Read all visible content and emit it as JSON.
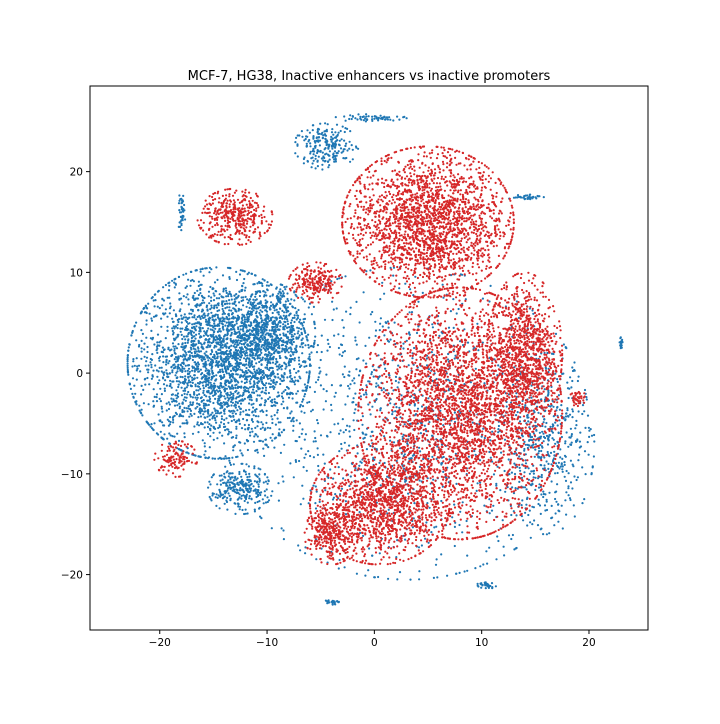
{
  "chart_data": {
    "type": "scatter",
    "title": "MCF-7, HG38, Inactive enhancers vs inactive promoters",
    "xlabel": "",
    "ylabel": "",
    "xlim": [
      -26.5,
      25.5
    ],
    "ylim": [
      -25.5,
      28.5
    ],
    "x_ticks": [
      -20,
      -10,
      0,
      10,
      20
    ],
    "y_ticks": [
      -20,
      -10,
      0,
      10,
      20
    ],
    "grid": false,
    "legend": "none",
    "colors": {
      "blue": "#1f77b4",
      "red": "#d62728"
    },
    "series": [
      {
        "color": "#1f77b4",
        "clusters": [
          {
            "cx": -14.5,
            "cy": 1.0,
            "rx": 8.5,
            "ry": 9.5,
            "n": 2600
          },
          {
            "cx": -10.0,
            "cy": 4.0,
            "rx": 4.5,
            "ry": 5.0,
            "n": 700
          },
          {
            "cx": -12.5,
            "cy": -11.5,
            "rx": 3.0,
            "ry": 2.5,
            "n": 260
          },
          {
            "cx": 3.0,
            "cy": -5.0,
            "rx": 17.0,
            "ry": 15.5,
            "n": 1100
          },
          {
            "cx": 16.0,
            "cy": -7.0,
            "rx": 4.5,
            "ry": 9.0,
            "n": 450
          },
          {
            "cx": -4.5,
            "cy": 22.5,
            "rx": 3.0,
            "ry": 2.3,
            "n": 220
          },
          {
            "cx": -18.0,
            "cy": 16.0,
            "rx": 0.4,
            "ry": 1.8,
            "n": 40
          },
          {
            "cx": 23.0,
            "cy": 3.0,
            "rx": 0.15,
            "ry": 0.7,
            "n": 20
          },
          {
            "cx": 10.5,
            "cy": -21.0,
            "rx": 0.9,
            "ry": 0.4,
            "n": 30
          },
          {
            "cx": -4.0,
            "cy": -22.7,
            "rx": 0.7,
            "ry": 0.3,
            "n": 25
          },
          {
            "cx": 14.0,
            "cy": 17.5,
            "rx": 1.8,
            "ry": 0.3,
            "n": 35
          },
          {
            "cx": -0.5,
            "cy": 25.3,
            "rx": 3.5,
            "ry": 0.4,
            "n": 60
          }
        ]
      },
      {
        "color": "#d62728",
        "clusters": [
          {
            "cx": 5.0,
            "cy": 15.0,
            "rx": 8.0,
            "ry": 7.5,
            "n": 2200
          },
          {
            "cx": 8.0,
            "cy": -4.0,
            "rx": 9.5,
            "ry": 12.5,
            "n": 3200
          },
          {
            "cx": 0.5,
            "cy": -13.0,
            "rx": 6.5,
            "ry": 6.0,
            "n": 1300
          },
          {
            "cx": 14.0,
            "cy": 2.0,
            "rx": 3.5,
            "ry": 8.0,
            "n": 900
          },
          {
            "cx": -13.0,
            "cy": 15.5,
            "rx": 3.5,
            "ry": 2.8,
            "n": 380
          },
          {
            "cx": -18.5,
            "cy": -8.5,
            "rx": 2.0,
            "ry": 1.8,
            "n": 120
          },
          {
            "cx": -5.5,
            "cy": 9.0,
            "rx": 2.5,
            "ry": 2.0,
            "n": 220
          },
          {
            "cx": -4.0,
            "cy": -16.0,
            "rx": 2.5,
            "ry": 3.0,
            "n": 300
          },
          {
            "cx": 19.0,
            "cy": -2.5,
            "rx": 0.8,
            "ry": 0.8,
            "n": 40
          }
        ]
      }
    ]
  }
}
